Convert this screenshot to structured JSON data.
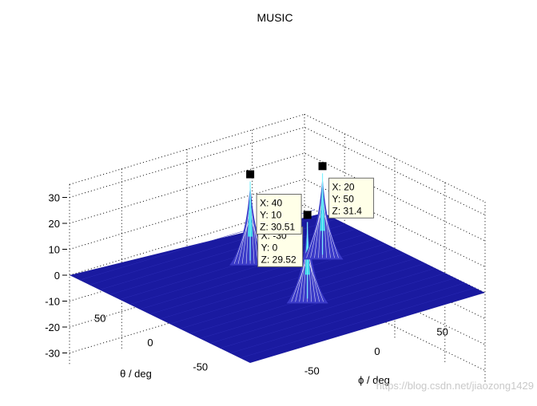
{
  "chart_data": {
    "type": "surface",
    "title": "MUSIC",
    "xlabel": "θ / deg",
    "ylabel": "ϕ / deg",
    "zticks": [
      30,
      20,
      10,
      0,
      -10,
      -20,
      -30
    ],
    "xticks": [
      50,
      0,
      -50
    ],
    "yticks": [
      -50,
      0,
      50
    ],
    "grid": true,
    "colors": {
      "surface": "#1a1aa0",
      "peak": "#39d6e8",
      "mesh": "#ffffff"
    },
    "peaks": [
      {
        "x": -30,
        "y": 0,
        "z": 29.52,
        "x_label": "X: -30",
        "y_label": "Y: 0",
        "z_label": "Z: 29.52"
      },
      {
        "x": 20,
        "y": 50,
        "z": 31.4,
        "x_label": "X: 20",
        "y_label": "Y: 50",
        "z_label": "Z: 31.4"
      },
      {
        "x": 40,
        "y": 10,
        "z": 30.51,
        "x_label": "X: 40",
        "y_label": "Y: 10",
        "z_label": "Z: 30.51"
      }
    ]
  },
  "watermark": "https://blog.csdn.net/jiaozong1429"
}
